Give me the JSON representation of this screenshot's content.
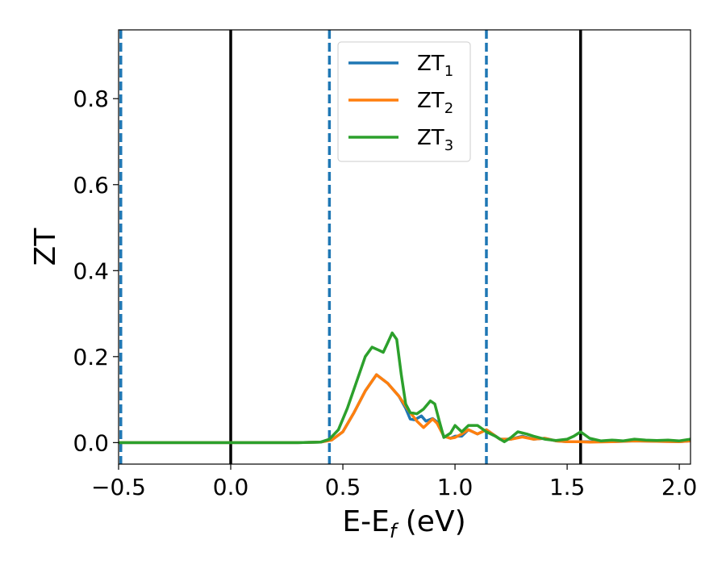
{
  "chart_data": {
    "type": "line",
    "title": "",
    "xlabel": {
      "main": "E-E",
      "sub": "f",
      "unit": " (eV)"
    },
    "ylabel": "ZT",
    "xlim": [
      -0.5,
      2.05
    ],
    "ylim": [
      -0.05,
      0.96
    ],
    "xticks": [
      -0.5,
      0.0,
      0.5,
      1.0,
      1.5,
      2.0
    ],
    "xtick_labels": [
      "−0.5",
      "0.0",
      "0.5",
      "1.0",
      "1.5",
      "2.0"
    ],
    "yticks": [
      0.0,
      0.2,
      0.4,
      0.6,
      0.8
    ],
    "ytick_labels": [
      "0.0",
      "0.2",
      "0.4",
      "0.6",
      "0.8"
    ],
    "legend_position": "top-center",
    "grid": false,
    "vlines": [
      {
        "x": -0.49,
        "style": "dashed",
        "color": "#1f77b4"
      },
      {
        "x": 0.0,
        "style": "solid",
        "color": "#000000"
      },
      {
        "x": 0.44,
        "style": "dashed",
        "color": "#1f77b4"
      },
      {
        "x": 1.14,
        "style": "dashed",
        "color": "#1f77b4"
      },
      {
        "x": 1.56,
        "style": "solid",
        "color": "#000000"
      }
    ],
    "series": [
      {
        "name": "ZT",
        "sub": "1",
        "color": "#1f77b4",
        "points": [
          [
            -0.5,
            0
          ],
          [
            0.3,
            0
          ],
          [
            0.4,
            0.001
          ],
          [
            0.45,
            0.006
          ],
          [
            0.5,
            0.025
          ],
          [
            0.55,
            0.07
          ],
          [
            0.6,
            0.12
          ],
          [
            0.65,
            0.158
          ],
          [
            0.7,
            0.138
          ],
          [
            0.75,
            0.108
          ],
          [
            0.78,
            0.08
          ],
          [
            0.8,
            0.055
          ],
          [
            0.82,
            0.053
          ],
          [
            0.85,
            0.062
          ],
          [
            0.87,
            0.05
          ],
          [
            0.9,
            0.056
          ],
          [
            0.92,
            0.048
          ],
          [
            0.95,
            0.015
          ],
          [
            0.98,
            0.01
          ],
          [
            1.0,
            0.015
          ],
          [
            1.03,
            0.015
          ],
          [
            1.06,
            0.03
          ],
          [
            1.1,
            0.02
          ],
          [
            1.14,
            0.03
          ],
          [
            1.2,
            0.008
          ],
          [
            1.25,
            0.008
          ],
          [
            1.3,
            0.015
          ],
          [
            1.35,
            0.008
          ],
          [
            1.4,
            0.01
          ],
          [
            1.45,
            0.004
          ],
          [
            1.5,
            0.002
          ],
          [
            1.55,
            0.002
          ],
          [
            1.6,
            0.002
          ],
          [
            1.7,
            0.002
          ],
          [
            1.8,
            0.004
          ],
          [
            1.9,
            0.003
          ],
          [
            2.0,
            0.002
          ],
          [
            2.05,
            0.004
          ]
        ]
      },
      {
        "name": "ZT",
        "sub": "2",
        "color": "#ff7f0e",
        "points": [
          [
            -0.5,
            0
          ],
          [
            0.3,
            0
          ],
          [
            0.4,
            0.001
          ],
          [
            0.45,
            0.006
          ],
          [
            0.5,
            0.025
          ],
          [
            0.55,
            0.07
          ],
          [
            0.6,
            0.12
          ],
          [
            0.65,
            0.158
          ],
          [
            0.7,
            0.138
          ],
          [
            0.75,
            0.108
          ],
          [
            0.78,
            0.085
          ],
          [
            0.8,
            0.07
          ],
          [
            0.83,
            0.05
          ],
          [
            0.86,
            0.035
          ],
          [
            0.9,
            0.055
          ],
          [
            0.92,
            0.045
          ],
          [
            0.95,
            0.015
          ],
          [
            0.98,
            0.01
          ],
          [
            1.0,
            0.012
          ],
          [
            1.03,
            0.02
          ],
          [
            1.06,
            0.03
          ],
          [
            1.1,
            0.02
          ],
          [
            1.14,
            0.03
          ],
          [
            1.2,
            0.008
          ],
          [
            1.25,
            0.008
          ],
          [
            1.3,
            0.013
          ],
          [
            1.35,
            0.008
          ],
          [
            1.4,
            0.01
          ],
          [
            1.45,
            0.004
          ],
          [
            1.5,
            0.002
          ],
          [
            1.55,
            0.002
          ],
          [
            1.6,
            0.001
          ],
          [
            1.7,
            0.002
          ],
          [
            1.8,
            0.004
          ],
          [
            1.9,
            0.003
          ],
          [
            2.0,
            0.002
          ],
          [
            2.05,
            0.004
          ]
        ]
      },
      {
        "name": "ZT",
        "sub": "3",
        "color": "#2ca02c",
        "points": [
          [
            -0.5,
            0
          ],
          [
            0.3,
            0
          ],
          [
            0.4,
            0.001
          ],
          [
            0.44,
            0.008
          ],
          [
            0.48,
            0.03
          ],
          [
            0.52,
            0.08
          ],
          [
            0.56,
            0.14
          ],
          [
            0.6,
            0.2
          ],
          [
            0.63,
            0.222
          ],
          [
            0.66,
            0.215
          ],
          [
            0.68,
            0.21
          ],
          [
            0.7,
            0.232
          ],
          [
            0.72,
            0.255
          ],
          [
            0.74,
            0.24
          ],
          [
            0.76,
            0.16
          ],
          [
            0.78,
            0.09
          ],
          [
            0.8,
            0.07
          ],
          [
            0.83,
            0.067
          ],
          [
            0.86,
            0.078
          ],
          [
            0.89,
            0.097
          ],
          [
            0.91,
            0.09
          ],
          [
            0.93,
            0.05
          ],
          [
            0.95,
            0.012
          ],
          [
            0.98,
            0.022
          ],
          [
            1.0,
            0.04
          ],
          [
            1.03,
            0.025
          ],
          [
            1.06,
            0.04
          ],
          [
            1.1,
            0.04
          ],
          [
            1.14,
            0.025
          ],
          [
            1.18,
            0.015
          ],
          [
            1.22,
            0.002
          ],
          [
            1.25,
            0.012
          ],
          [
            1.28,
            0.025
          ],
          [
            1.32,
            0.02
          ],
          [
            1.35,
            0.015
          ],
          [
            1.4,
            0.008
          ],
          [
            1.45,
            0.005
          ],
          [
            1.5,
            0.008
          ],
          [
            1.53,
            0.015
          ],
          [
            1.56,
            0.025
          ],
          [
            1.6,
            0.01
          ],
          [
            1.65,
            0.004
          ],
          [
            1.7,
            0.006
          ],
          [
            1.75,
            0.004
          ],
          [
            1.8,
            0.008
          ],
          [
            1.85,
            0.006
          ],
          [
            1.9,
            0.005
          ],
          [
            1.95,
            0.006
          ],
          [
            2.0,
            0.004
          ],
          [
            2.05,
            0.008
          ]
        ]
      }
    ]
  }
}
